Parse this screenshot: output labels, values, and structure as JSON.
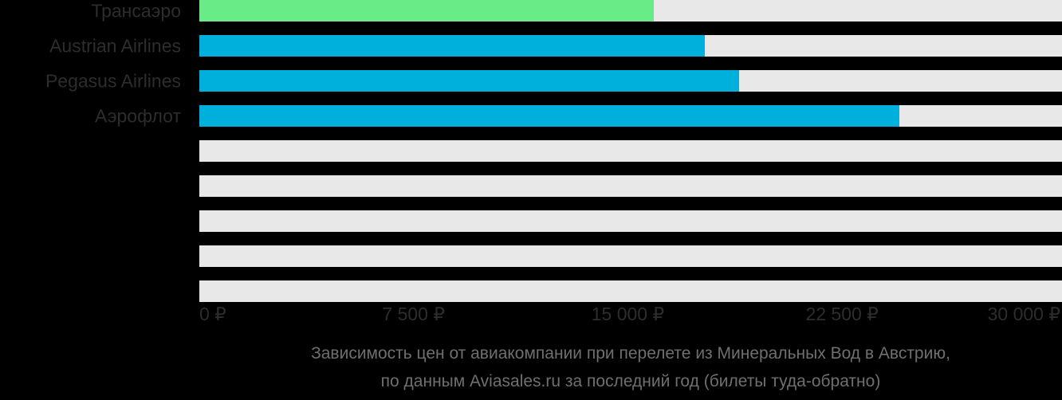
{
  "chart_data": {
    "type": "bar",
    "orientation": "horizontal",
    "title": "Зависимость цен от авиакомпании при перелете из Минеральных Вод в Австрию,",
    "subtitle": "по данным Aviasales.ru за последний год (билеты туда-обратно)",
    "unit": "₽",
    "categories": [
      "Трансаэро",
      "Austrian Airlines",
      "Pegasus Airlines",
      "Аэрофлот",
      "",
      "",
      "",
      "",
      ""
    ],
    "values": [
      15900,
      17700,
      18900,
      24500,
      null,
      null,
      null,
      null,
      null
    ],
    "bar_colors": [
      "#69EB87",
      "#00B0DC",
      "#00B0DC",
      "#00B0DC",
      null,
      null,
      null,
      null,
      null
    ],
    "track_color": "#E8E8E8",
    "xlim": [
      0,
      30200
    ],
    "x_ticks": [
      {
        "value": 0,
        "label": "0 ₽"
      },
      {
        "value": 7500,
        "label": "7 500 ₽"
      },
      {
        "value": 15000,
        "label": "15 000 ₽"
      },
      {
        "value": 22500,
        "label": "22 500 ₽"
      },
      {
        "value": 30000,
        "label": "30 000 ₽"
      }
    ],
    "grid": false,
    "legend": false
  },
  "colors": {
    "background": "#000000",
    "label_text": "#2D2D2F",
    "tick_text": "#2D2D2F",
    "caption_text": "#6F6F6F",
    "bar_green": "#69EB87",
    "bar_cyan": "#00B0DC",
    "track": "#E8E8E8"
  }
}
